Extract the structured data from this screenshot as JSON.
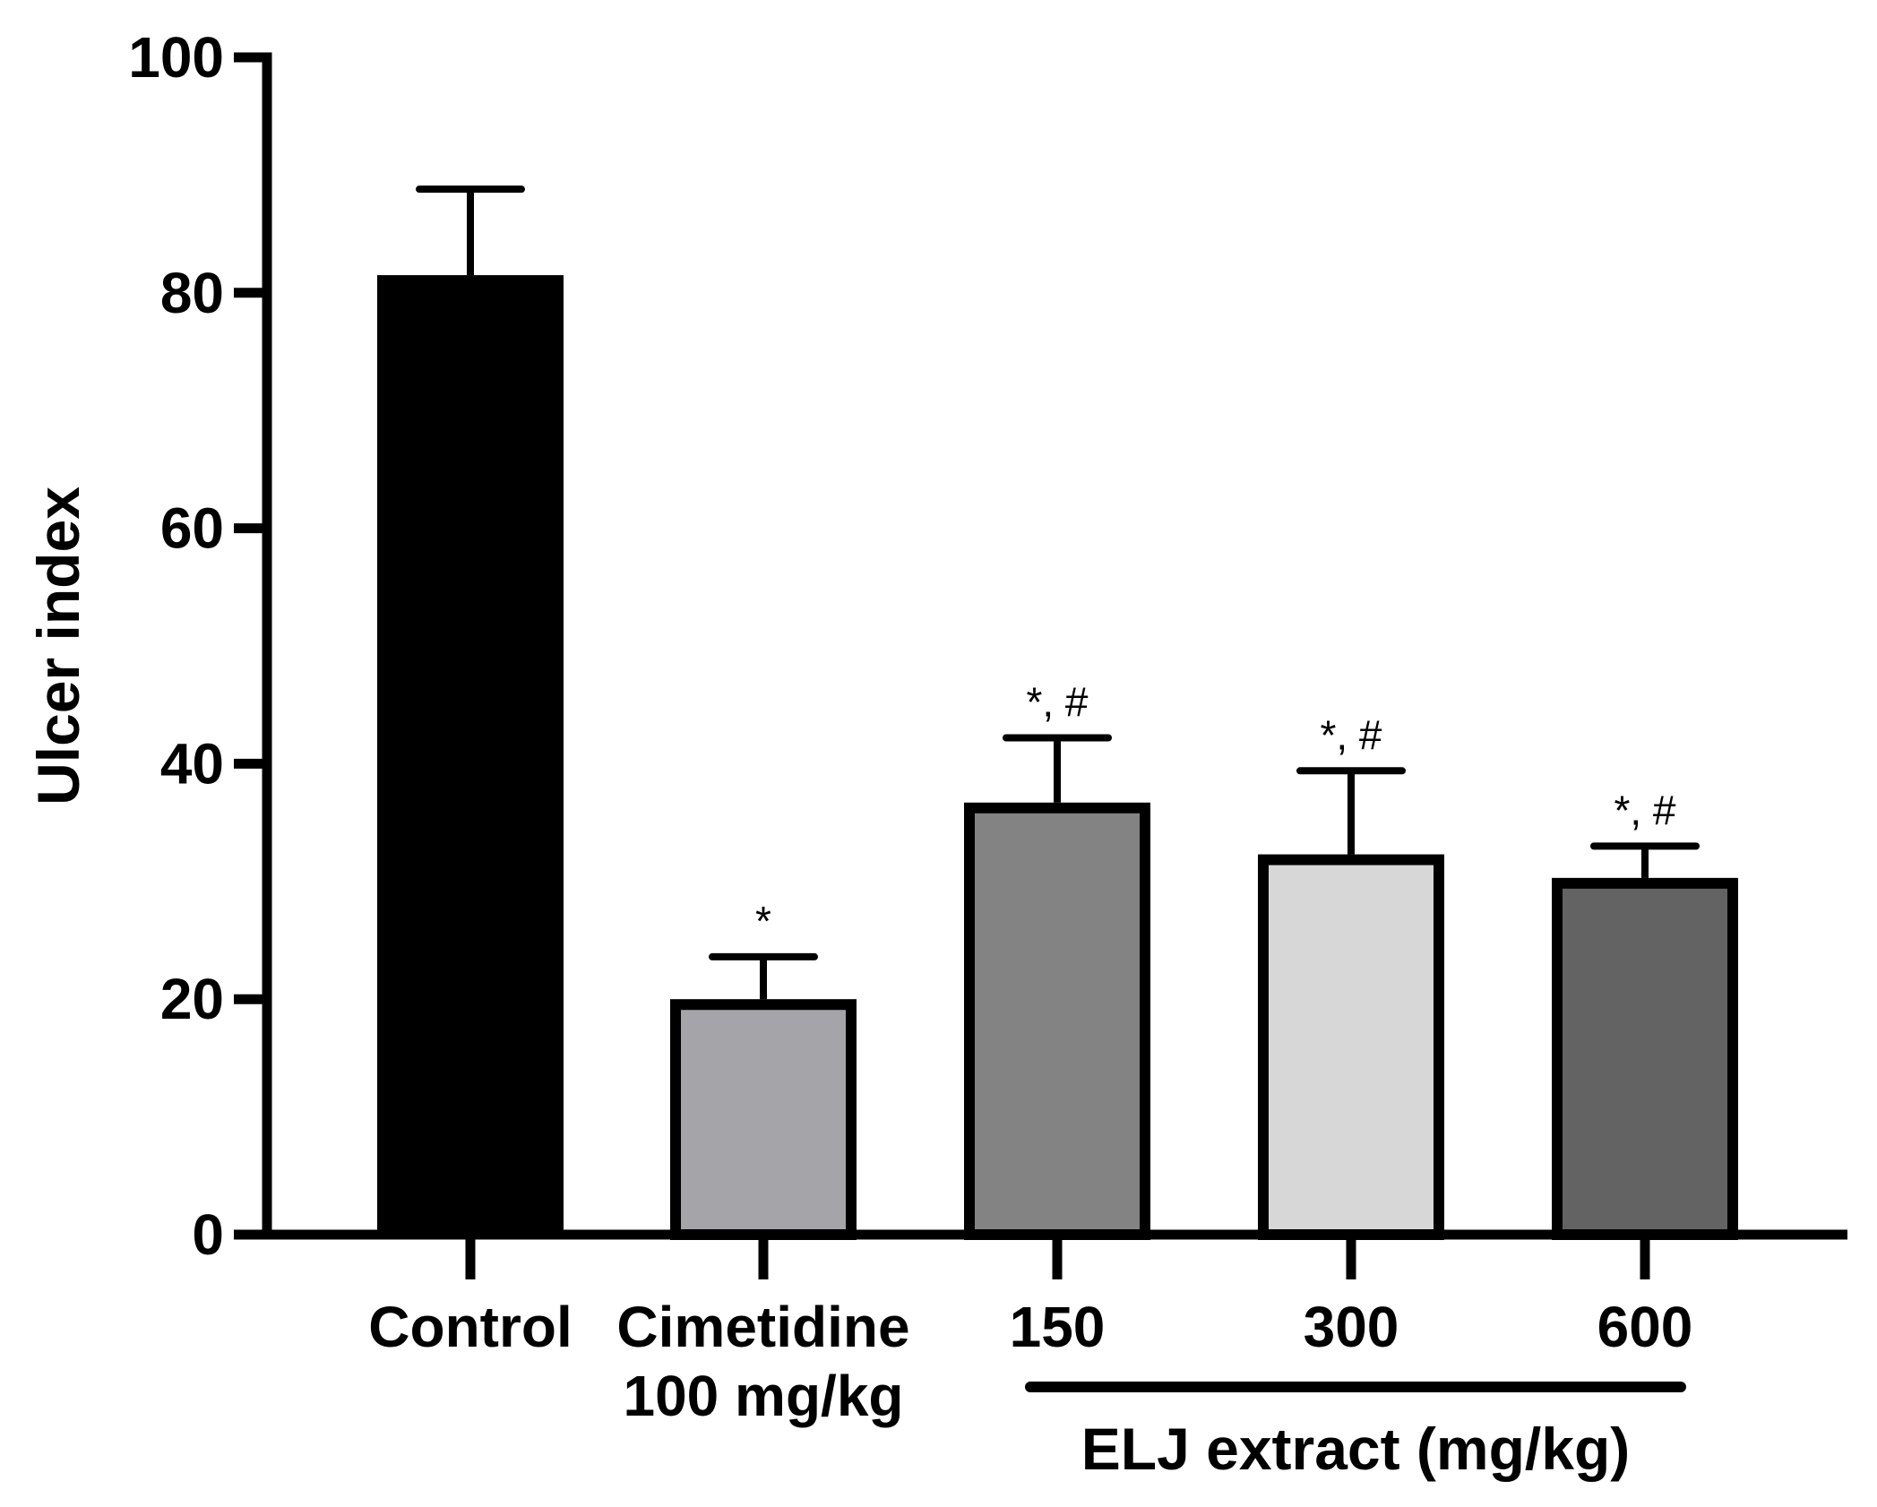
{
  "chart_data": {
    "type": "bar",
    "title": "",
    "xlabel": "",
    "ylabel": "Ulcer index",
    "ylim": [
      0,
      100
    ],
    "yticks": [
      "0",
      "20",
      "40",
      "60",
      "80",
      "100"
    ],
    "grid": false,
    "categories": [
      {
        "line1": "Control",
        "line2": ""
      },
      {
        "line1": "Cimetidine",
        "line2": "100 mg/kg"
      },
      {
        "line1": "150",
        "line2": ""
      },
      {
        "line1": "300",
        "line2": ""
      },
      {
        "line1": "600",
        "line2": ""
      }
    ],
    "values": [
      81.5,
      20,
      36.7,
      32.3,
      30.3
    ],
    "errors": [
      7.3,
      3.6,
      5.5,
      7.1,
      2.7
    ],
    "colors": [
      "#000000",
      "#a5a4a9",
      "#838383",
      "#d7d7d7",
      "#636363"
    ],
    "significance": [
      "",
      "*",
      "*, #",
      "*, #",
      "*, #"
    ],
    "group_label": "ELJ extract (mg/kg)",
    "group_span": [
      2,
      4
    ]
  }
}
